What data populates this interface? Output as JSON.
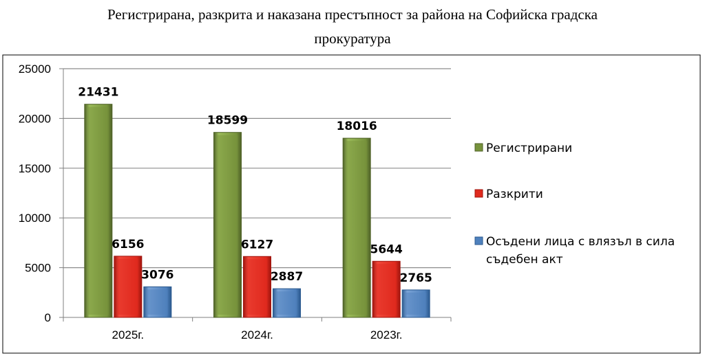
{
  "chart_data": {
    "type": "bar",
    "title_lines": [
      "Регистрирана, разкрита и наказана престъпност за района на Софийска градска",
      "прокуратура"
    ],
    "categories": [
      "2025г.",
      "2024г.",
      "2023г."
    ],
    "series": [
      {
        "name": "Регистрирани",
        "values": [
          21431,
          18599,
          18016
        ],
        "color": "#77933C",
        "light": "#9BBB59",
        "dark": "#4F6228"
      },
      {
        "name": "Разкрити",
        "values": [
          6156,
          6127,
          5644
        ],
        "color": "#E02A1E",
        "light": "#F0483A",
        "dark": "#A0150E"
      },
      {
        "name": "Осъдени лица с влязъл в сила съдебен акт",
        "name_lines": [
          "Осъдени лица с влязъл в сила",
          "съдебен акт"
        ],
        "values": [
          3076,
          2887,
          2765
        ],
        "color": "#4F81BD",
        "light": "#7AA3D6",
        "dark": "#2C5A8F"
      }
    ],
    "yticks": [
      0,
      5000,
      10000,
      15000,
      20000,
      25000
    ],
    "ylim": [
      0,
      25000
    ],
    "grid": true,
    "legend_position": "right"
  }
}
